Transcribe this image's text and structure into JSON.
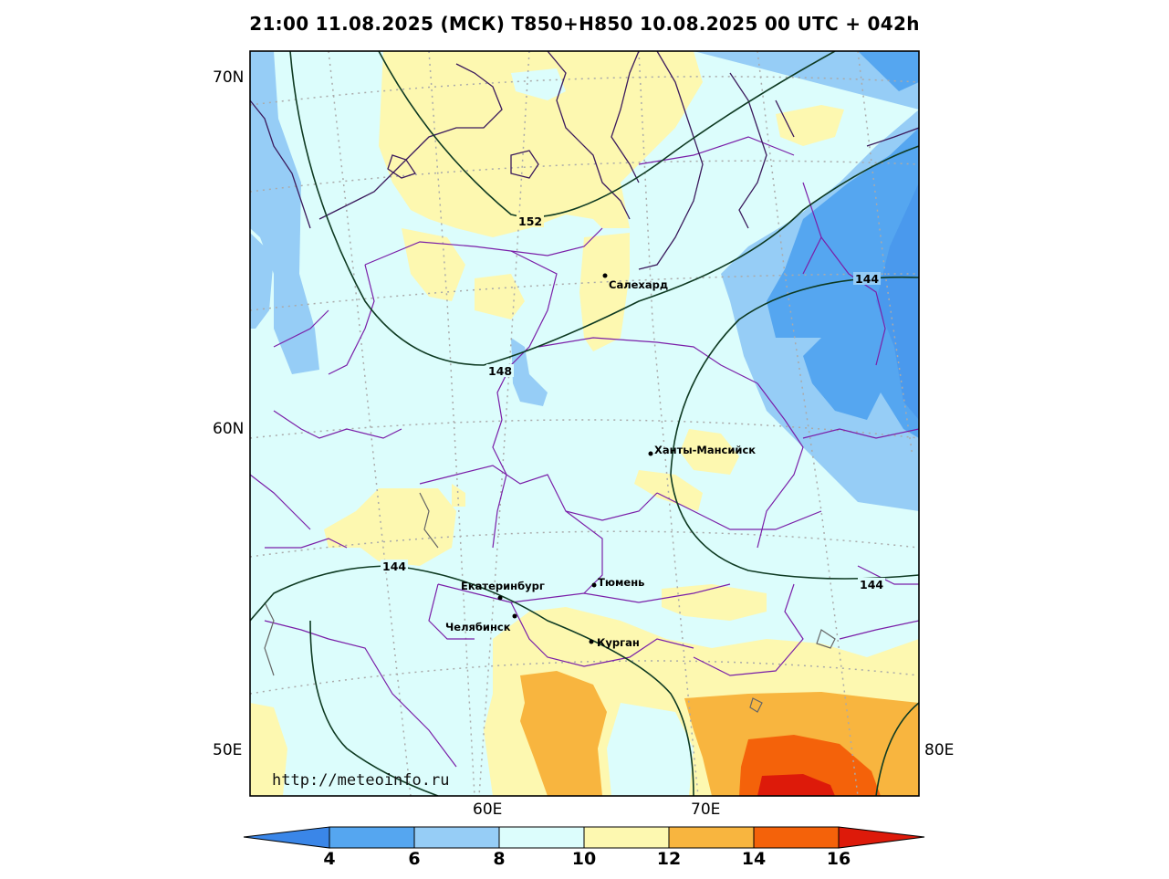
{
  "title": "21:00 11.08.2025 (МСК) T850+H850 10.08.2025 00 UTC + 042h",
  "lat_labels": [
    "70N",
    "60N"
  ],
  "lon_labels_left": "50E",
  "lon_labels_right": "80E",
  "lon_labels_bottom": [
    "60E",
    "70E"
  ],
  "cities": [
    {
      "name": "Салехард"
    },
    {
      "name": "Ханты-Мансийск"
    },
    {
      "name": "Екатеринбург"
    },
    {
      "name": "Тюмень"
    },
    {
      "name": "Челябинск"
    },
    {
      "name": "Курган"
    }
  ],
  "contour_labels": [
    "152",
    "148",
    "144",
    "144",
    "144"
  ],
  "watermark": "http://meteoinfo.ru",
  "colorbar": {
    "ticks": [
      "4",
      "6",
      "8",
      "10",
      "12",
      "14",
      "16"
    ],
    "colors": [
      "#3a86e8",
      "#55a6f0",
      "#96cdf6",
      "#dcfdfc",
      "#fdf8b0",
      "#f8b53f",
      "#f4620a",
      "#dd1a0a"
    ]
  }
}
